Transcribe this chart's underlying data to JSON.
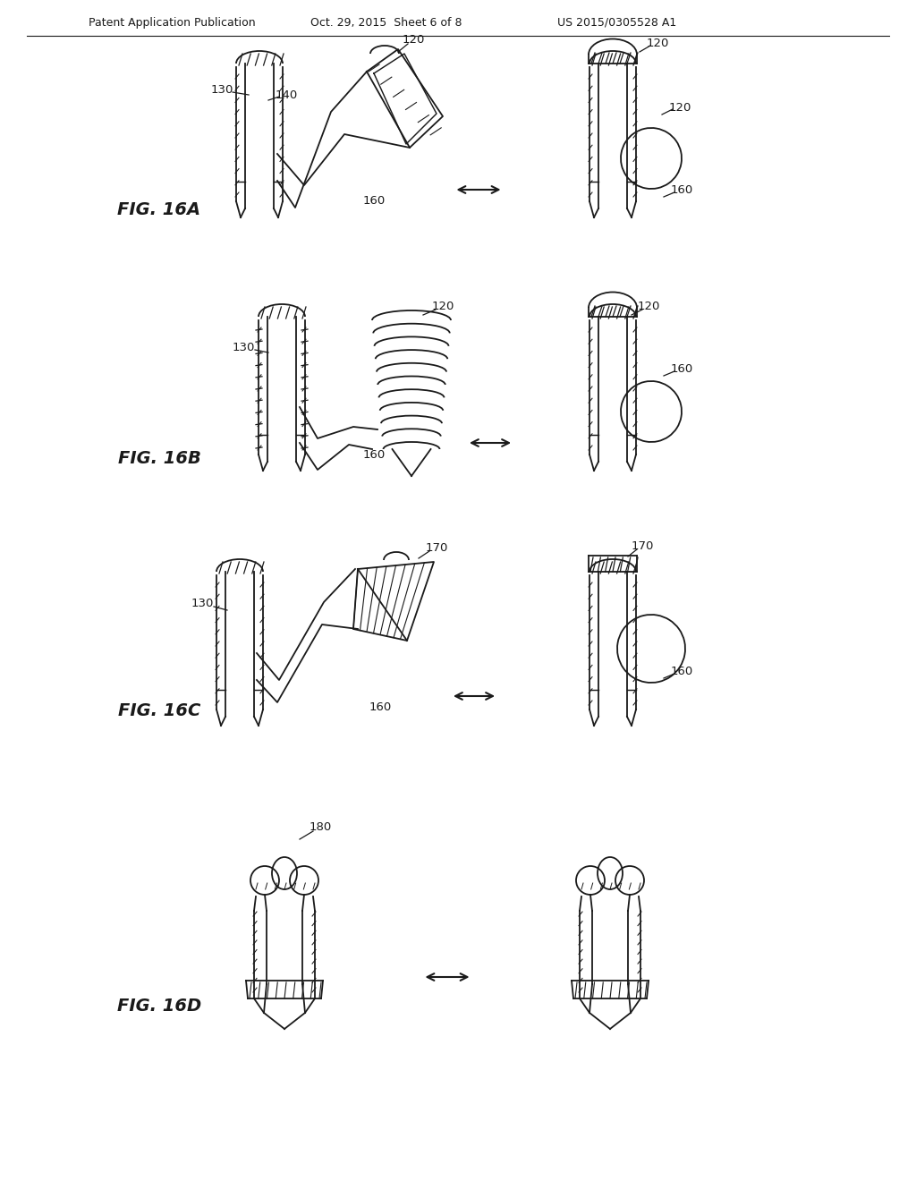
{
  "background_color": "#ffffff",
  "header_left": "Patent Application Publication",
  "header_mid": "Oct. 29, 2015  Sheet 6 of 8",
  "header_right": "US 2015/0305528 A1",
  "line_color": "#1a1a1a",
  "ref_fontsize": 9.5,
  "fig_label_fontsize": 14
}
